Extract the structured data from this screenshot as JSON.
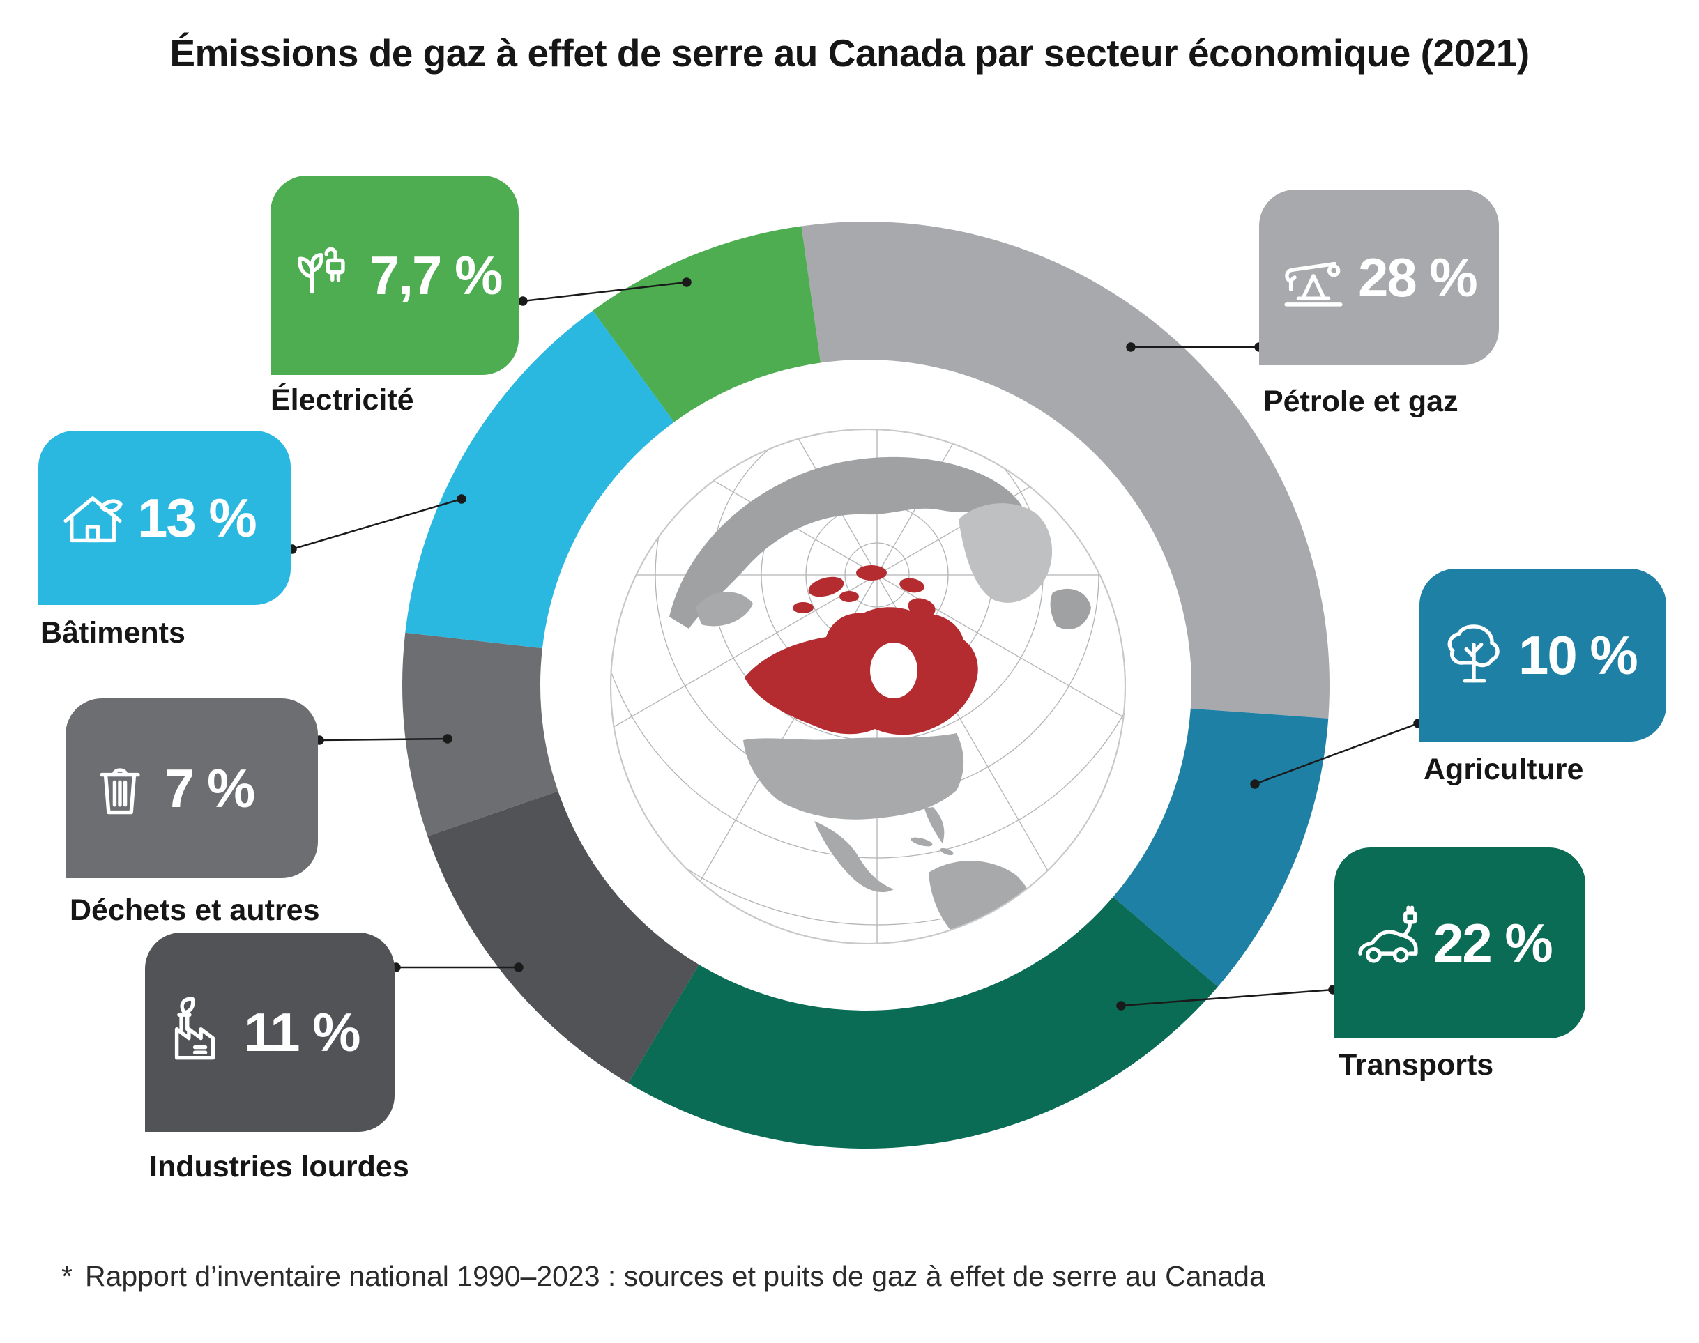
{
  "title": "Émissions de gaz à effet de serre au Canada par secteur économique (2021)",
  "footnote": {
    "marker": "*",
    "text": "Rapport d’inventaire national 1990–2023 : sources et puits de gaz à effet de serre au Canada"
  },
  "chart_data": {
    "type": "pie",
    "variant": "donut",
    "title": "Émissions de gaz à effet de serre au Canada par secteur économique (2021)",
    "unit": "%",
    "direction": "clockwise",
    "start_angle_deg": -8,
    "center_illustration": "globe-highlighting-canada",
    "segments": [
      {
        "label": "Pétrole et gaz",
        "value": 28,
        "display": "28 %",
        "color": "#A7A9AC",
        "icon": "oil-pumpjack-icon"
      },
      {
        "label": "Agriculture",
        "value": 10,
        "display": "10 %",
        "color": "#1E80A4",
        "icon": "tree-icon"
      },
      {
        "label": "Transports",
        "value": 22,
        "display": "22 %",
        "color": "#0A6C55",
        "icon": "electric-car-icon"
      },
      {
        "label": "Industries lourdes",
        "value": 11,
        "display": "11 %",
        "color": "#515357",
        "icon": "factory-leaf-icon"
      },
      {
        "label": "Déchets et autres",
        "value": 7,
        "display": "7 %",
        "color": "#6D6E71",
        "icon": "trash-icon"
      },
      {
        "label": "Bâtiments",
        "value": 13,
        "display": "13 %",
        "color": "#2AB8E0",
        "icon": "house-leaf-icon"
      },
      {
        "label": "Électricité",
        "value": 7.7,
        "display": "7,7 %",
        "color": "#4EAD50",
        "icon": "plant-plug-icon"
      }
    ],
    "colors": {
      "canada_red": "#B42B30",
      "land_gray": "#A7A9AB",
      "text_dark": "#161616"
    }
  }
}
